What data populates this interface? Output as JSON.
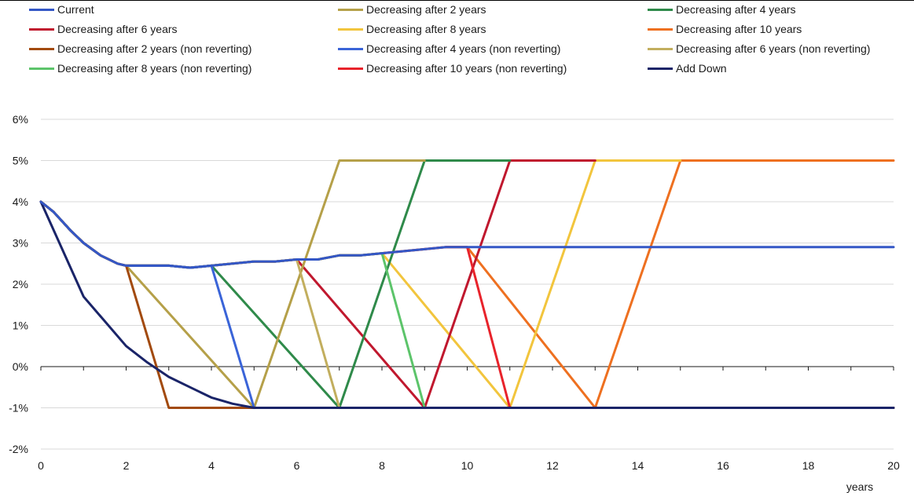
{
  "chart_data": {
    "type": "line",
    "xlabel": "years",
    "ylabel": "",
    "xlim": [
      0,
      20
    ],
    "ylim": [
      -2,
      6
    ],
    "x_ticks": [
      0,
      2,
      4,
      6,
      8,
      10,
      12,
      14,
      16,
      18,
      20
    ],
    "y_ticks": [
      -2,
      -1,
      0,
      1,
      2,
      3,
      4,
      5,
      6
    ],
    "y_tick_labels": [
      "-2%",
      "-1%",
      "0%",
      "1%",
      "2%",
      "3%",
      "4%",
      "5%",
      "6%"
    ],
    "grid": "horizontal",
    "legend_position": "top",
    "series": [
      {
        "name": "Decreasing after 10 years",
        "color": "#ee7020",
        "points": [
          [
            0,
            4
          ],
          [
            0.3,
            3.75
          ],
          [
            0.7,
            3.3
          ],
          [
            1,
            3.0
          ],
          [
            1.4,
            2.7
          ],
          [
            1.8,
            2.5
          ],
          [
            2,
            2.45
          ],
          [
            2.5,
            2.45
          ],
          [
            3,
            2.45
          ],
          [
            3.5,
            2.4
          ],
          [
            4,
            2.45
          ],
          [
            4.5,
            2.5
          ],
          [
            5,
            2.55
          ],
          [
            5.5,
            2.55
          ],
          [
            6,
            2.6
          ],
          [
            6.5,
            2.6
          ],
          [
            7,
            2.7
          ],
          [
            7.5,
            2.7
          ],
          [
            8,
            2.75
          ],
          [
            8.5,
            2.8
          ],
          [
            9,
            2.85
          ],
          [
            9.5,
            2.9
          ],
          [
            10,
            2.9
          ],
          [
            13,
            -1
          ],
          [
            15,
            5
          ],
          [
            20,
            5
          ]
        ]
      },
      {
        "name": "Decreasing after 8 years",
        "color": "#f2c53d",
        "points": [
          [
            0,
            4
          ],
          [
            0.3,
            3.75
          ],
          [
            0.7,
            3.3
          ],
          [
            1,
            3.0
          ],
          [
            1.4,
            2.7
          ],
          [
            1.8,
            2.5
          ],
          [
            2,
            2.45
          ],
          [
            2.5,
            2.45
          ],
          [
            3,
            2.45
          ],
          [
            3.5,
            2.4
          ],
          [
            4,
            2.45
          ],
          [
            4.5,
            2.5
          ],
          [
            5,
            2.55
          ],
          [
            5.5,
            2.55
          ],
          [
            6,
            2.6
          ],
          [
            6.5,
            2.6
          ],
          [
            7,
            2.7
          ],
          [
            7.5,
            2.7
          ],
          [
            8,
            2.75
          ],
          [
            11,
            -1
          ],
          [
            13,
            5
          ],
          [
            15,
            5
          ]
        ]
      },
      {
        "name": "Decreasing after 6 years",
        "color": "#c0182e",
        "points": [
          [
            0,
            4
          ],
          [
            0.3,
            3.75
          ],
          [
            0.7,
            3.3
          ],
          [
            1,
            3.0
          ],
          [
            1.4,
            2.7
          ],
          [
            1.8,
            2.5
          ],
          [
            2,
            2.45
          ],
          [
            2.5,
            2.45
          ],
          [
            3,
            2.45
          ],
          [
            3.5,
            2.4
          ],
          [
            4,
            2.45
          ],
          [
            4.5,
            2.5
          ],
          [
            5,
            2.55
          ],
          [
            5.5,
            2.55
          ],
          [
            6,
            2.6
          ],
          [
            9,
            -1
          ],
          [
            11,
            5
          ],
          [
            13,
            5
          ]
        ]
      },
      {
        "name": "Decreasing after 4 years",
        "color": "#2f8a4a",
        "points": [
          [
            0,
            4
          ],
          [
            0.3,
            3.75
          ],
          [
            0.7,
            3.3
          ],
          [
            1,
            3.0
          ],
          [
            1.4,
            2.7
          ],
          [
            1.8,
            2.5
          ],
          [
            2,
            2.45
          ],
          [
            2.5,
            2.45
          ],
          [
            3,
            2.45
          ],
          [
            3.5,
            2.4
          ],
          [
            4,
            2.45
          ],
          [
            7,
            -1
          ],
          [
            9,
            5
          ],
          [
            11,
            5
          ]
        ]
      },
      {
        "name": "Decreasing after 2 years",
        "color": "#b5a049",
        "points": [
          [
            0,
            4
          ],
          [
            0.3,
            3.75
          ],
          [
            0.7,
            3.3
          ],
          [
            1,
            3.0
          ],
          [
            1.4,
            2.7
          ],
          [
            1.8,
            2.5
          ],
          [
            2,
            2.45
          ],
          [
            5,
            -1
          ],
          [
            7,
            5
          ],
          [
            9,
            5
          ]
        ]
      },
      {
        "name": "Decreasing after 10 years (non reverting)",
        "color": "#e8232b",
        "points": [
          [
            0,
            4
          ],
          [
            0.3,
            3.75
          ],
          [
            0.7,
            3.3
          ],
          [
            1,
            3.0
          ],
          [
            1.4,
            2.7
          ],
          [
            1.8,
            2.5
          ],
          [
            2,
            2.45
          ],
          [
            2.5,
            2.45
          ],
          [
            3,
            2.45
          ],
          [
            3.5,
            2.4
          ],
          [
            4,
            2.45
          ],
          [
            4.5,
            2.5
          ],
          [
            5,
            2.55
          ],
          [
            5.5,
            2.55
          ],
          [
            6,
            2.6
          ],
          [
            6.5,
            2.6
          ],
          [
            7,
            2.7
          ],
          [
            7.5,
            2.7
          ],
          [
            8,
            2.75
          ],
          [
            8.5,
            2.8
          ],
          [
            9,
            2.85
          ],
          [
            9.5,
            2.9
          ],
          [
            10,
            2.9
          ],
          [
            11,
            -1
          ],
          [
            20,
            -1
          ]
        ]
      },
      {
        "name": "Decreasing after 8 years (non reverting)",
        "color": "#5cc46a",
        "points": [
          [
            0,
            4
          ],
          [
            0.3,
            3.75
          ],
          [
            0.7,
            3.3
          ],
          [
            1,
            3.0
          ],
          [
            1.4,
            2.7
          ],
          [
            1.8,
            2.5
          ],
          [
            2,
            2.45
          ],
          [
            2.5,
            2.45
          ],
          [
            3,
            2.45
          ],
          [
            3.5,
            2.4
          ],
          [
            4,
            2.45
          ],
          [
            4.5,
            2.5
          ],
          [
            5,
            2.55
          ],
          [
            5.5,
            2.55
          ],
          [
            6,
            2.6
          ],
          [
            6.5,
            2.6
          ],
          [
            7,
            2.7
          ],
          [
            7.5,
            2.7
          ],
          [
            8,
            2.75
          ],
          [
            9,
            -1
          ],
          [
            20,
            -1
          ]
        ]
      },
      {
        "name": "Decreasing after 6 years (non reverting)",
        "color": "#c2ae5e",
        "points": [
          [
            0,
            4
          ],
          [
            0.3,
            3.75
          ],
          [
            0.7,
            3.3
          ],
          [
            1,
            3.0
          ],
          [
            1.4,
            2.7
          ],
          [
            1.8,
            2.5
          ],
          [
            2,
            2.45
          ],
          [
            2.5,
            2.45
          ],
          [
            3,
            2.45
          ],
          [
            3.5,
            2.4
          ],
          [
            4,
            2.45
          ],
          [
            4.5,
            2.5
          ],
          [
            5,
            2.55
          ],
          [
            5.5,
            2.55
          ],
          [
            6,
            2.6
          ],
          [
            7,
            -1
          ],
          [
            20,
            -1
          ]
        ]
      },
      {
        "name": "Decreasing after 4 years (non reverting)",
        "color": "#3a64d8",
        "points": [
          [
            0,
            4
          ],
          [
            0.3,
            3.75
          ],
          [
            0.7,
            3.3
          ],
          [
            1,
            3.0
          ],
          [
            1.4,
            2.7
          ],
          [
            1.8,
            2.5
          ],
          [
            2,
            2.45
          ],
          [
            2.5,
            2.45
          ],
          [
            3,
            2.45
          ],
          [
            3.5,
            2.4
          ],
          [
            4,
            2.45
          ],
          [
            5,
            -1
          ],
          [
            20,
            -1
          ]
        ]
      },
      {
        "name": "Decreasing after 2 years (non reverting)",
        "color": "#a24a0e",
        "points": [
          [
            0,
            4
          ],
          [
            0.3,
            3.75
          ],
          [
            0.7,
            3.3
          ],
          [
            1,
            3.0
          ],
          [
            1.4,
            2.7
          ],
          [
            1.8,
            2.5
          ],
          [
            2,
            2.45
          ],
          [
            3,
            -1
          ],
          [
            5,
            -1
          ],
          [
            20,
            -1
          ]
        ]
      },
      {
        "name": "Add Down",
        "color": "#1a2468",
        "points": [
          [
            0,
            4
          ],
          [
            1,
            1.7
          ],
          [
            2,
            0.5
          ],
          [
            2.5,
            0.1
          ],
          [
            3,
            -0.25
          ],
          [
            3.5,
            -0.5
          ],
          [
            4,
            -0.75
          ],
          [
            4.5,
            -0.9
          ],
          [
            5,
            -1
          ],
          [
            20,
            -1
          ]
        ]
      },
      {
        "name": "Current",
        "color": "#3457c6",
        "points": [
          [
            0,
            4
          ],
          [
            0.3,
            3.75
          ],
          [
            0.7,
            3.3
          ],
          [
            1,
            3.0
          ],
          [
            1.4,
            2.7
          ],
          [
            1.8,
            2.5
          ],
          [
            2,
            2.45
          ],
          [
            2.5,
            2.45
          ],
          [
            3,
            2.45
          ],
          [
            3.5,
            2.4
          ],
          [
            4,
            2.45
          ],
          [
            4.5,
            2.5
          ],
          [
            5,
            2.55
          ],
          [
            5.5,
            2.55
          ],
          [
            6,
            2.6
          ],
          [
            6.5,
            2.6
          ],
          [
            7,
            2.7
          ],
          [
            7.5,
            2.7
          ],
          [
            8,
            2.75
          ],
          [
            8.5,
            2.8
          ],
          [
            9,
            2.85
          ],
          [
            9.5,
            2.9
          ],
          [
            10,
            2.9
          ],
          [
            20,
            2.9
          ]
        ]
      }
    ],
    "legend": [
      {
        "name": "Current",
        "color": "#3457c6"
      },
      {
        "name": "Decreasing after 2 years",
        "color": "#b5a049"
      },
      {
        "name": "Decreasing after 4 years",
        "color": "#2f8a4a"
      },
      {
        "name": "Decreasing after 6 years",
        "color": "#c0182e"
      },
      {
        "name": "Decreasing after 8 years",
        "color": "#f2c53d"
      },
      {
        "name": "Decreasing after 10 years",
        "color": "#ee7020"
      },
      {
        "name": "Decreasing after 2 years (non reverting)",
        "color": "#a24a0e"
      },
      {
        "name": "Decreasing after 4 years (non reverting)",
        "color": "#3a64d8"
      },
      {
        "name": "Decreasing after 6 years (non reverting)",
        "color": "#c2ae5e"
      },
      {
        "name": "Decreasing after 8 years (non reverting)",
        "color": "#5cc46a"
      },
      {
        "name": "Decreasing after 10 years (non reverting)",
        "color": "#e8232b"
      },
      {
        "name": "Add Down",
        "color": "#1a2468"
      }
    ]
  }
}
